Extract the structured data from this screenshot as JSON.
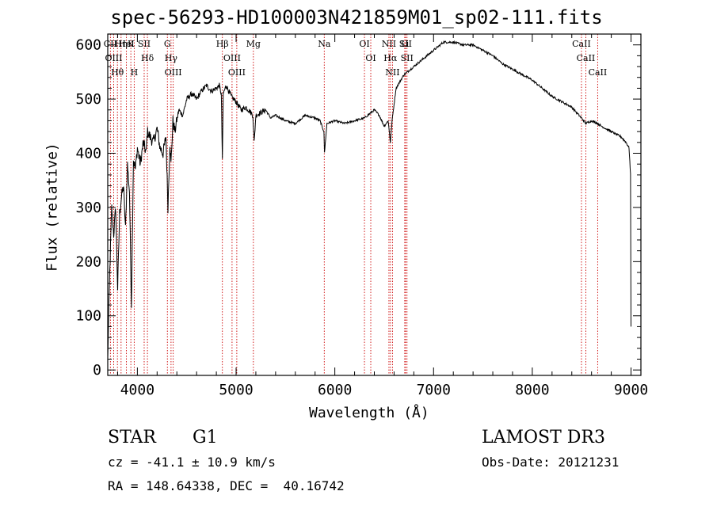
{
  "chart_data": {
    "type": "line",
    "title": "spec-56293-HD100003N421859M01_sp02-111.fits",
    "xlabel": "Wavelength (Å)",
    "ylabel": "Flux (relative)",
    "xlim": [
      3700,
      9100
    ],
    "ylim": [
      -10,
      620
    ],
    "x_ticks": [
      4000,
      5000,
      6000,
      7000,
      8000,
      9000
    ],
    "y_ticks": [
      0,
      100,
      200,
      300,
      400,
      500,
      600
    ],
    "series": [
      {
        "name": "spectrum",
        "x": [
          3700,
          3720,
          3740,
          3760,
          3780,
          3800,
          3820,
          3840,
          3860,
          3880,
          3900,
          3920,
          3940,
          3960,
          3980,
          4000,
          4030,
          4060,
          4090,
          4100,
          4130,
          4160,
          4200,
          4230,
          4260,
          4290,
          4310,
          4330,
          4340,
          4360,
          4380,
          4420,
          4460,
          4500,
          4550,
          4600,
          4650,
          4700,
          4750,
          4800,
          4830,
          4850,
          4861,
          4870,
          4900,
          4950,
          5000,
          5050,
          5100,
          5150,
          5170,
          5183,
          5200,
          5250,
          5300,
          5350,
          5400,
          5500,
          5600,
          5700,
          5800,
          5850,
          5890,
          5895,
          5920,
          6000,
          6100,
          6200,
          6300,
          6400,
          6450,
          6500,
          6540,
          6563,
          6580,
          6620,
          6700,
          6800,
          6900,
          7000,
          7100,
          7200,
          7300,
          7400,
          7500,
          7600,
          7700,
          7800,
          7900,
          8000,
          8100,
          8200,
          8300,
          8400,
          8498,
          8542,
          8600,
          8662,
          8700,
          8800,
          8850,
          8900,
          8950,
          8980,
          8995,
          9000
        ],
        "values": [
          20,
          180,
          300,
          250,
          300,
          150,
          290,
          320,
          340,
          260,
          380,
          330,
          120,
          390,
          370,
          410,
          380,
          420,
          400,
          440,
          430,
          420,
          445,
          410,
          400,
          430,
          300,
          420,
          380,
          460,
          440,
          480,
          470,
          500,
          510,
          500,
          515,
          525,
          515,
          520,
          525,
          510,
          390,
          510,
          525,
          505,
          495,
          480,
          485,
          475,
          470,
          420,
          470,
          475,
          480,
          465,
          470,
          460,
          455,
          470,
          465,
          460,
          440,
          400,
          455,
          460,
          455,
          460,
          465,
          480,
          470,
          450,
          460,
          420,
          460,
          520,
          545,
          560,
          575,
          590,
          605,
          605,
          600,
          600,
          590,
          580,
          565,
          555,
          545,
          535,
          520,
          505,
          495,
          485,
          465,
          455,
          460,
          455,
          450,
          440,
          435,
          430,
          420,
          410,
          360,
          80
        ]
      }
    ],
    "lines": [
      {
        "label": "Hθ",
        "x": 3798
      },
      {
        "label": "K",
        "x": 3934
      },
      {
        "label": "Hδ",
        "x": 4102
      },
      {
        "label": "CII",
        "x": 3727
      },
      {
        "label": "HeI",
        "x": 3889
      },
      {
        "label": "SII",
        "x": 4069
      },
      {
        "label": "OIII",
        "x": 3760
      },
      {
        "label": "Hη",
        "x": 3835
      },
      {
        "label": "H",
        "x": 3968
      },
      {
        "label": "OIII",
        "x": 4363
      },
      {
        "label": "Hγ",
        "x": 4341
      },
      {
        "label": "G",
        "x": 4304
      },
      {
        "label": "OIII",
        "x": 5007
      },
      {
        "label": "OIII",
        "x": 4959
      },
      {
        "label": "Hβ",
        "x": 4861
      },
      {
        "label": "Mg",
        "x": 5175
      },
      {
        "label": "Na",
        "x": 5893
      },
      {
        "label": "OI",
        "x": 6300
      },
      {
        "label": "OI",
        "x": 6364
      },
      {
        "label": "Hα",
        "x": 6563
      },
      {
        "label": "SII",
        "x": 6716
      },
      {
        "label": "NII",
        "x": 6584
      },
      {
        "label": "Li",
        "x": 6708
      },
      {
        "label": "NII",
        "x": 6548
      },
      {
        "label": "SII",
        "x": 6731
      },
      {
        "label": "CaII",
        "x": 8542
      },
      {
        "label": "CaII",
        "x": 8498
      },
      {
        "label": "CaII",
        "x": 8662
      }
    ]
  },
  "info": {
    "object_class": "STAR",
    "subclass": "G1",
    "survey": "LAMOST DR3",
    "cz": "cz = -41.1 ± 10.9 km/s",
    "obs_date": "Obs-Date: 20121231",
    "radec": "RA = 148.64338, DEC =  40.16742"
  },
  "colors": {
    "spectrum": "#000000",
    "line_markers": "#cc0000"
  }
}
